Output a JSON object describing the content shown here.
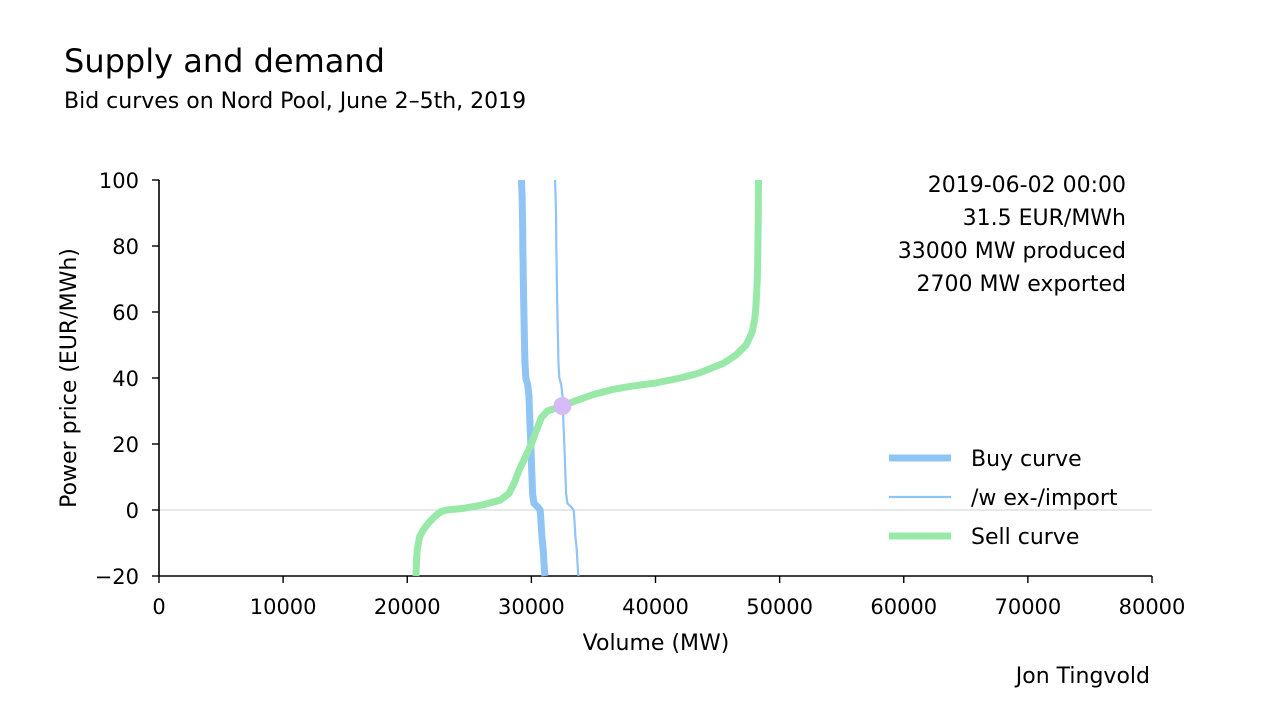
{
  "chart_data": {
    "type": "line",
    "title": "Supply and demand",
    "subtitle": "Bid curves on Nord Pool, June 2–5th, 2019",
    "xlabel": "Volume (MW)",
    "ylabel": "Power price (EUR/MWh)",
    "xlim": [
      0,
      80000
    ],
    "ylim": [
      -20,
      100
    ],
    "x_ticks": [
      0,
      10000,
      20000,
      30000,
      40000,
      50000,
      60000,
      70000,
      80000
    ],
    "x_tick_labels": [
      "0",
      "10000",
      "20000",
      "30000",
      "40000",
      "50000",
      "60000",
      "70000",
      "80000"
    ],
    "y_ticks": [
      -20,
      0,
      20,
      40,
      60,
      80,
      100
    ],
    "y_tick_labels": [
      "−20",
      "0",
      "20",
      "40",
      "60",
      "80",
      "100"
    ],
    "zero_line": true,
    "grid": false,
    "legend_position": "lower-right",
    "series": [
      {
        "name": "Buy curve",
        "color": "#90c4f5",
        "style": "thick",
        "points": [
          [
            29200,
            100
          ],
          [
            29250,
            95
          ],
          [
            29280,
            90
          ],
          [
            29300,
            85
          ],
          [
            29310,
            80
          ],
          [
            29330,
            75
          ],
          [
            29350,
            70
          ],
          [
            29370,
            65
          ],
          [
            29400,
            60
          ],
          [
            29420,
            55
          ],
          [
            29450,
            50
          ],
          [
            29480,
            45
          ],
          [
            29550,
            40
          ],
          [
            29700,
            38
          ],
          [
            29800,
            35
          ],
          [
            29850,
            30
          ],
          [
            29900,
            25
          ],
          [
            29950,
            20
          ],
          [
            30000,
            15
          ],
          [
            30050,
            10
          ],
          [
            30100,
            5
          ],
          [
            30200,
            2
          ],
          [
            30500,
            1
          ],
          [
            30700,
            0
          ],
          [
            30750,
            -2
          ],
          [
            30800,
            -5
          ],
          [
            30850,
            -8
          ],
          [
            30900,
            -10
          ],
          [
            30950,
            -12
          ],
          [
            31000,
            -15
          ],
          [
            31050,
            -18
          ],
          [
            31100,
            -20
          ]
        ]
      },
      {
        "name": "/w ex-/import",
        "color": "#90c4f5",
        "style": "thin",
        "points": [
          [
            31900,
            100
          ],
          [
            31950,
            95
          ],
          [
            31980,
            90
          ],
          [
            32000,
            85
          ],
          [
            32010,
            80
          ],
          [
            32030,
            75
          ],
          [
            32050,
            70
          ],
          [
            32070,
            65
          ],
          [
            32100,
            60
          ],
          [
            32120,
            55
          ],
          [
            32150,
            50
          ],
          [
            32180,
            45
          ],
          [
            32250,
            40
          ],
          [
            32400,
            38
          ],
          [
            32500,
            35
          ],
          [
            32550,
            30
          ],
          [
            32600,
            25
          ],
          [
            32650,
            20
          ],
          [
            32700,
            15
          ],
          [
            32750,
            10
          ],
          [
            32800,
            5
          ],
          [
            32900,
            2
          ],
          [
            33200,
            1
          ],
          [
            33400,
            0
          ],
          [
            33450,
            -2
          ],
          [
            33500,
            -5
          ],
          [
            33550,
            -8
          ],
          [
            33600,
            -10
          ],
          [
            33650,
            -12
          ],
          [
            33700,
            -15
          ],
          [
            33750,
            -18
          ],
          [
            33800,
            -20
          ]
        ]
      },
      {
        "name": "Sell curve",
        "color": "#98e8a8",
        "style": "thick",
        "points": [
          [
            20700,
            -20
          ],
          [
            20750,
            -15
          ],
          [
            20800,
            -12
          ],
          [
            20900,
            -10
          ],
          [
            21000,
            -8
          ],
          [
            21300,
            -6
          ],
          [
            21700,
            -4
          ],
          [
            22200,
            -2
          ],
          [
            22700,
            -0.5
          ],
          [
            23200,
            0
          ],
          [
            24500,
            0.5
          ],
          [
            26000,
            1.5
          ],
          [
            27500,
            3
          ],
          [
            28200,
            5
          ],
          [
            28600,
            8
          ],
          [
            29000,
            12
          ],
          [
            29500,
            16
          ],
          [
            30000,
            20
          ],
          [
            30400,
            24
          ],
          [
            30800,
            28
          ],
          [
            31300,
            30
          ],
          [
            32500,
            31.5
          ],
          [
            33500,
            33
          ],
          [
            35000,
            35
          ],
          [
            36500,
            36.5
          ],
          [
            38000,
            37.5
          ],
          [
            40000,
            38.5
          ],
          [
            42000,
            40
          ],
          [
            43500,
            41.5
          ],
          [
            44500,
            43
          ],
          [
            45500,
            44.5
          ],
          [
            46500,
            47
          ],
          [
            47300,
            50
          ],
          [
            47800,
            54
          ],
          [
            48000,
            58
          ],
          [
            48100,
            62
          ],
          [
            48150,
            66
          ],
          [
            48200,
            70
          ],
          [
            48230,
            75
          ],
          [
            48250,
            80
          ],
          [
            48280,
            90
          ],
          [
            48300,
            100
          ]
        ]
      }
    ],
    "equilibrium_point": {
      "x": 32500,
      "y": 31.5,
      "color": "#d6bbf7"
    },
    "info_lines": [
      "2019-06-02 00:00",
      "31.5 EUR/MWh",
      "33000 MW produced",
      "2700 MW exported"
    ],
    "credit": "Jon Tingvold"
  }
}
